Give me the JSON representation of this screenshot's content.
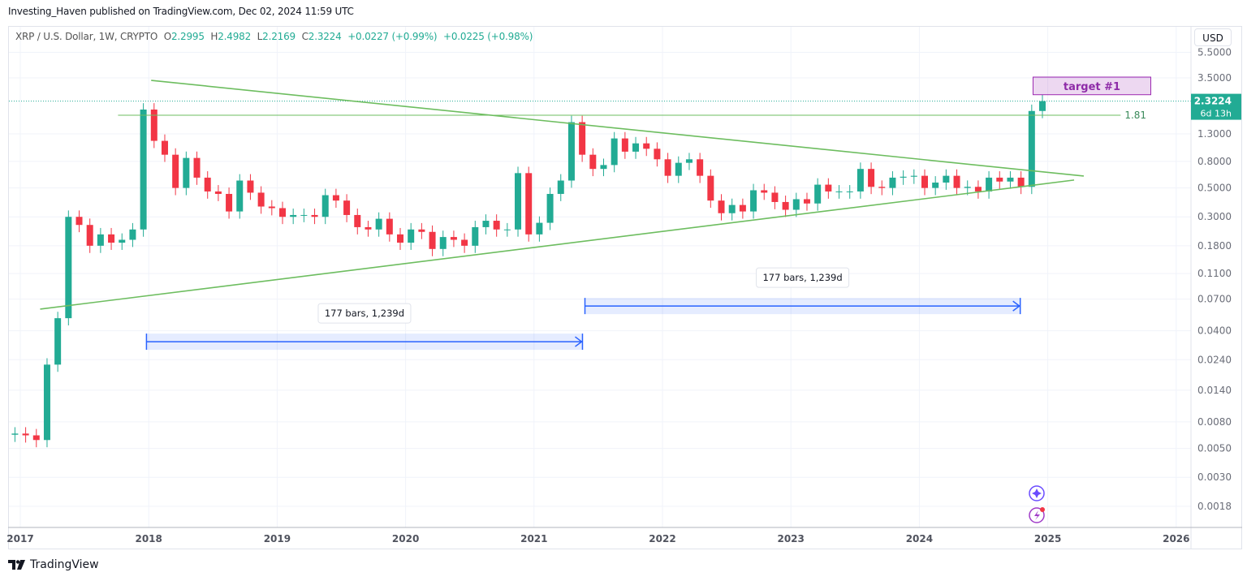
{
  "publisher_line": "Investing_Haven published on TradingView.com, Dec 02, 2024 11:59 UTC",
  "legend": {
    "symbol": "XRP / U.S. Dollar, 1W, CRYPTO",
    "open_label": "O",
    "open": "2.2995",
    "high_label": "H",
    "high": "2.4982",
    "low_label": "L",
    "low": "2.2169",
    "close_label": "C",
    "close": "2.3224",
    "change": "+0.0227 (+0.99%)",
    "change2": "+0.0225 (+0.98%)"
  },
  "currency_button": "USD",
  "price_badge": {
    "price": "2.3224",
    "countdown": "6d 13h",
    "color": "#22ab94"
  },
  "footer_logo": "TradingView",
  "colors": {
    "up": "#22ab94",
    "down": "#f23645",
    "trendline": "#6dbd5f",
    "range": "#2962ff",
    "target": "#9c27b0"
  },
  "chart_data": {
    "type": "candlestick",
    "scale": "log",
    "grid": true,
    "ylim": [
      0.0015,
      5.5
    ],
    "xlim": [
      "2016-11-20",
      "2026-02-15"
    ],
    "y_ticks": [
      "5.5000",
      "3.5000",
      "1.3000",
      "0.8000",
      "0.5000",
      "0.3000",
      "0.1800",
      "0.1100",
      "0.0700",
      "0.0400",
      "0.0240",
      "0.0140",
      "0.0080",
      "0.0050",
      "0.0030",
      "0.0018"
    ],
    "x_ticks": [
      "2017",
      "2018",
      "2019",
      "2020",
      "2021",
      "2022",
      "2023",
      "2024",
      "2025",
      "2026"
    ],
    "monthly_closes": {
      "start": "2016-12",
      "values": [
        0.0065,
        0.0063,
        0.0058,
        0.022,
        0.05,
        0.3,
        0.26,
        0.18,
        0.22,
        0.19,
        0.2,
        0.24,
        2.0,
        1.15,
        0.9,
        0.5,
        0.85,
        0.6,
        0.47,
        0.45,
        0.33,
        0.57,
        0.46,
        0.36,
        0.35,
        0.3,
        0.31,
        0.31,
        0.3,
        0.44,
        0.4,
        0.31,
        0.25,
        0.24,
        0.29,
        0.22,
        0.19,
        0.24,
        0.23,
        0.17,
        0.21,
        0.2,
        0.18,
        0.25,
        0.28,
        0.24,
        0.24,
        0.65,
        0.22,
        0.27,
        0.45,
        0.57,
        1.6,
        0.9,
        0.7,
        0.75,
        1.2,
        0.95,
        1.1,
        1.0,
        0.83,
        0.62,
        0.78,
        0.83,
        0.62,
        0.4,
        0.32,
        0.37,
        0.33,
        0.48,
        0.46,
        0.39,
        0.34,
        0.41,
        0.38,
        0.53,
        0.47,
        0.47,
        0.47,
        0.7,
        0.51,
        0.5,
        0.6,
        0.61,
        0.62,
        0.5,
        0.55,
        0.62,
        0.5,
        0.51,
        0.47,
        0.6,
        0.56,
        0.6,
        0.51,
        1.95,
        2.3224
      ]
    },
    "last_price": 2.3224,
    "annotations": {
      "upper_trendline": {
        "from": [
          "2018-01-08",
          3.35
        ],
        "to": [
          "2025-04-12",
          0.617
        ]
      },
      "lower_trendline": {
        "from": [
          "2017-02-27",
          0.0587
        ],
        "to": [
          "2025-03-15",
          0.575
        ]
      },
      "horizontal_line": {
        "price": 1.81,
        "label": "1.81",
        "from": "2017-10-05",
        "to": "2025-10-15"
      },
      "date_ranges": [
        {
          "from": "2017-12-25",
          "to": "2021-05-17",
          "price": 0.033,
          "label": "177 bars, 1,239d"
        },
        {
          "from": "2021-05-24",
          "to": "2024-10-14",
          "price": 0.062,
          "label": "177 bars, 1,239d"
        }
      ],
      "target_box": {
        "from": "2024-11-20",
        "to": "2025-10-20",
        "top": 3.55,
        "bottom": 2.6,
        "label": "target #1"
      }
    }
  }
}
